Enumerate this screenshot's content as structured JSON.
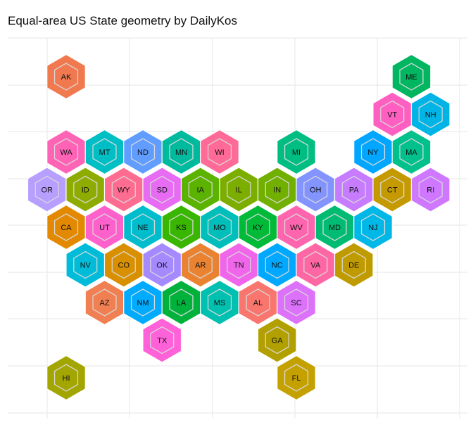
{
  "chart_data": {
    "type": "hexbin-map",
    "title": "Equal-area US State geometry by DailyKos",
    "xlabel": "",
    "ylabel": "",
    "grid": true,
    "states": [
      {
        "code": "AK",
        "col": 0,
        "row": 0,
        "color": "#F1794F"
      },
      {
        "code": "ME",
        "col": 9,
        "row": 0,
        "color": "#00B660"
      },
      {
        "code": "VT",
        "col": 8.5,
        "row": 1,
        "color": "#FF5FC1"
      },
      {
        "code": "NH",
        "col": 9.5,
        "row": 1,
        "color": "#00B4E6"
      },
      {
        "code": "WA",
        "col": 0,
        "row": 2,
        "color": "#FF63B6"
      },
      {
        "code": "MT",
        "col": 1,
        "row": 2,
        "color": "#00BFC4"
      },
      {
        "code": "ND",
        "col": 2,
        "row": 2,
        "color": "#619CFF"
      },
      {
        "code": "MN",
        "col": 3,
        "row": 2,
        "color": "#00BA9E"
      },
      {
        "code": "WI",
        "col": 4,
        "row": 2,
        "color": "#FF6A98"
      },
      {
        "code": "MI",
        "col": 6,
        "row": 2,
        "color": "#00BE82"
      },
      {
        "code": "NY",
        "col": 8,
        "row": 2,
        "color": "#00A6FF"
      },
      {
        "code": "MA",
        "col": 9,
        "row": 2,
        "color": "#00C08B"
      },
      {
        "code": "OR",
        "col": -0.5,
        "row": 3,
        "color": "#B79FFF"
      },
      {
        "code": "ID",
        "col": 0.5,
        "row": 3,
        "color": "#8EAB00"
      },
      {
        "code": "WY",
        "col": 1.5,
        "row": 3,
        "color": "#FF6C91"
      },
      {
        "code": "SD",
        "col": 2.5,
        "row": 3,
        "color": "#E76BF3"
      },
      {
        "code": "IA",
        "col": 3.5,
        "row": 3,
        "color": "#5BB300"
      },
      {
        "code": "IL",
        "col": 4.5,
        "row": 3,
        "color": "#7CAE00"
      },
      {
        "code": "IN",
        "col": 5.5,
        "row": 3,
        "color": "#72B000"
      },
      {
        "code": "OH",
        "col": 6.5,
        "row": 3,
        "color": "#8494FF"
      },
      {
        "code": "PA",
        "col": 7.5,
        "row": 3,
        "color": "#C77CFF"
      },
      {
        "code": "CT",
        "col": 8.5,
        "row": 3,
        "color": "#C49A00"
      },
      {
        "code": "RI",
        "col": 9.5,
        "row": 3,
        "color": "#CF78FF"
      },
      {
        "code": "CA",
        "col": 0,
        "row": 4,
        "color": "#E38900"
      },
      {
        "code": "UT",
        "col": 1,
        "row": 4,
        "color": "#FF61CC"
      },
      {
        "code": "NE",
        "col": 2,
        "row": 4,
        "color": "#00BDCE"
      },
      {
        "code": "KS",
        "col": 3,
        "row": 4,
        "color": "#39B600"
      },
      {
        "code": "MO",
        "col": 4,
        "row": 4,
        "color": "#00BFBA"
      },
      {
        "code": "KY",
        "col": 5,
        "row": 4,
        "color": "#00BA38"
      },
      {
        "code": "WV",
        "col": 6,
        "row": 4,
        "color": "#FF65AE"
      },
      {
        "code": "MD",
        "col": 7,
        "row": 4,
        "color": "#00BC73"
      },
      {
        "code": "NJ",
        "col": 8,
        "row": 4,
        "color": "#00B8E7"
      },
      {
        "code": "NV",
        "col": 0.5,
        "row": 5,
        "color": "#00BCD8"
      },
      {
        "code": "CO",
        "col": 1.5,
        "row": 5,
        "color": "#D89000"
      },
      {
        "code": "OK",
        "col": 2.5,
        "row": 5,
        "color": "#A58AFF"
      },
      {
        "code": "AR",
        "col": 3.5,
        "row": 5,
        "color": "#EA8331"
      },
      {
        "code": "TN",
        "col": 4.5,
        "row": 5,
        "color": "#F066EA"
      },
      {
        "code": "NC",
        "col": 5.5,
        "row": 5,
        "color": "#00A9FF"
      },
      {
        "code": "VA",
        "col": 6.5,
        "row": 5,
        "color": "#FF67A4"
      },
      {
        "code": "DE",
        "col": 7.5,
        "row": 5,
        "color": "#C09B00"
      },
      {
        "code": "AZ",
        "col": 1,
        "row": 6,
        "color": "#F07F51"
      },
      {
        "code": "NM",
        "col": 2,
        "row": 6,
        "color": "#00ABFD"
      },
      {
        "code": "LA",
        "col": 3,
        "row": 6,
        "color": "#00B13C"
      },
      {
        "code": "MS",
        "col": 4,
        "row": 6,
        "color": "#00C0B0"
      },
      {
        "code": "AL",
        "col": 5,
        "row": 6,
        "color": "#F8766D"
      },
      {
        "code": "SC",
        "col": 6,
        "row": 6,
        "color": "#DC71FA"
      },
      {
        "code": "TX",
        "col": 2.5,
        "row": 7,
        "color": "#FF61D8"
      },
      {
        "code": "GA",
        "col": 5.5,
        "row": 7,
        "color": "#B2A000"
      },
      {
        "code": "HI",
        "col": 0,
        "row": 8,
        "color": "#A3A500"
      },
      {
        "code": "FL",
        "col": 6,
        "row": 8,
        "color": "#C5A100"
      }
    ]
  }
}
